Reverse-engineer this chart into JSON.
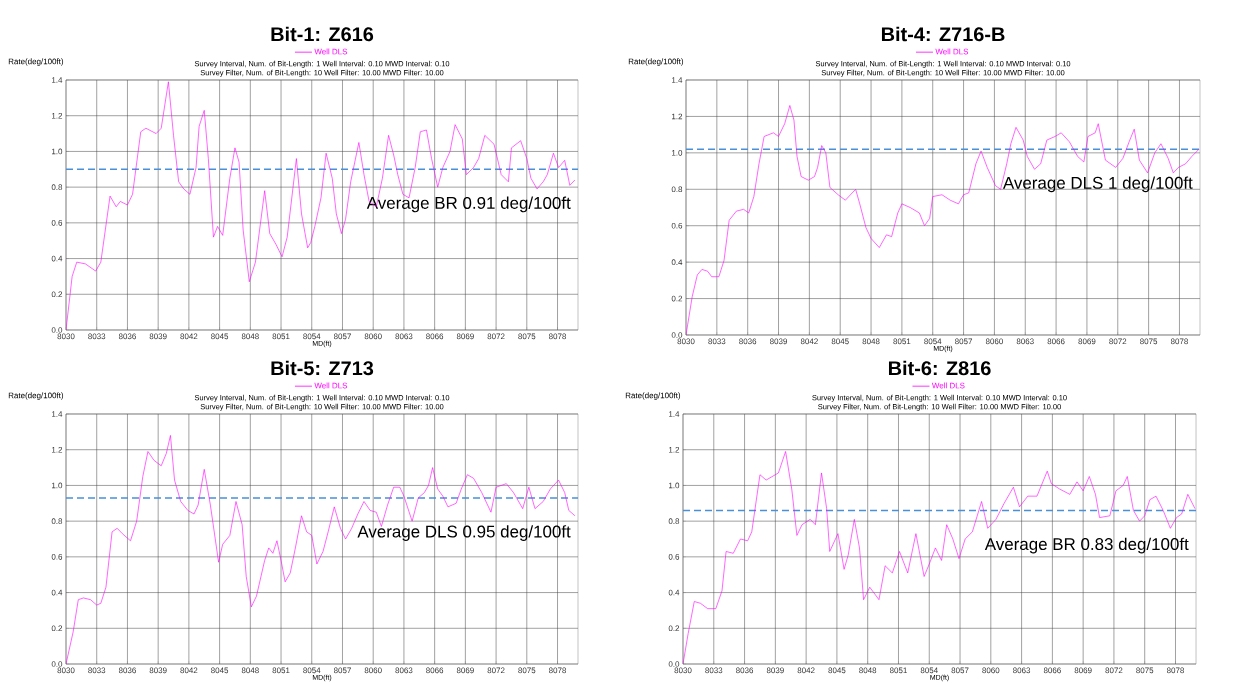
{
  "chart_data": [
    {
      "type": "line",
      "title": "Bit-1: Z616",
      "annotations": [
        "Survey Interval, Num. of Bit-Length: 1 Well Interval: 0.10 MWD Interval: 0.10",
        "Survey Filter, Num. of Bit-Length: 10 Well Filter: 10.00 MWD Filter: 10.00"
      ],
      "xlabel": "MD(ft)",
      "ylabel": "Rate(deg/100ft)",
      "xlim": [
        8030,
        8080
      ],
      "ylim": [
        0,
        1.4
      ],
      "xticks": [
        8030,
        8033,
        8036,
        8039,
        8042,
        8045,
        8048,
        8051,
        8054,
        8057,
        8060,
        8063,
        8066,
        8069,
        8072,
        8075,
        8078
      ],
      "yticks": [
        {
          "value": 0,
          "label": "0.0"
        },
        {
          "value": 0.2,
          "label": "0.2"
        },
        {
          "value": 0.4,
          "label": "0.4"
        },
        {
          "value": 0.6,
          "label": "0.6"
        },
        {
          "value": 0.8,
          "label": "0.8"
        },
        {
          "value": 1.0,
          "label": "1.0"
        },
        {
          "value": 1.2,
          "label": "1.2"
        },
        {
          "value": 1.4,
          "label": "1.4"
        }
      ],
      "grid": true,
      "legend": "top",
      "line_style": "solid",
      "x": [
        8030,
        8030.6,
        8031.05,
        8031.9,
        8032.9,
        8033.4,
        8034.3,
        8034.9,
        8035.3,
        8036.0,
        8036.5,
        8037.3,
        8037.8,
        8038.8,
        8039.3,
        8040.0,
        8040.5,
        8041.0,
        8041.5,
        8042.1,
        8042.7,
        8043.0,
        8043.5,
        8043.9,
        8044.4,
        8044.8,
        8045.3,
        8046.0,
        8046.5,
        8046.9,
        8047.3,
        8047.9,
        8048.5,
        8049.4,
        8049.9,
        8050.5,
        8051.1,
        8051.6,
        8052.5,
        8053.0,
        8053.6,
        8053.9,
        8054.3,
        8054.9,
        8055.4,
        8056.0,
        8056.4,
        8056.9,
        8057.3,
        8057.8,
        8058.6,
        8059.1,
        8059.6,
        8060.3,
        8060.9,
        8061.5,
        8062.0,
        8062.4,
        8062.9,
        8063.5,
        8064.1,
        8064.6,
        8065.2,
        8065.7,
        8066.3,
        8066.8,
        8067.5,
        8068.0,
        8068.7,
        8069.1,
        8069.8,
        8070.3,
        8070.9,
        8071.8,
        8072.5,
        8073.2,
        8073.5,
        8074.4,
        8075.0,
        8075.4,
        8076.0,
        8076.6,
        8077.0,
        8077.6,
        8078.1,
        8078.7,
        8079.2,
        8079.7
      ],
      "series": [
        {
          "name": "Well DLS",
          "color": "#ff00ff",
          "values": [
            0,
            0.3,
            0.38,
            0.37,
            0.33,
            0.38,
            0.75,
            0.69,
            0.72,
            0.7,
            0.76,
            1.11,
            1.13,
            1.1,
            1.13,
            1.39,
            1.09,
            0.83,
            0.79,
            0.76,
            0.91,
            1.14,
            1.23,
            0.96,
            0.52,
            0.58,
            0.53,
            0.85,
            1.02,
            0.94,
            0.56,
            0.27,
            0.38,
            0.78,
            0.54,
            0.48,
            0.41,
            0.52,
            0.96,
            0.65,
            0.46,
            0.49,
            0.58,
            0.74,
            0.99,
            0.85,
            0.65,
            0.54,
            0.62,
            0.83,
            1.05,
            0.87,
            0.72,
            0.69,
            0.85,
            1.09,
            0.98,
            0.87,
            0.76,
            0.74,
            0.91,
            1.11,
            1.12,
            0.96,
            0.8,
            0.91,
            1.0,
            1.15,
            1.07,
            0.87,
            0.91,
            0.96,
            1.09,
            1.04,
            0.87,
            0.83,
            1.02,
            1.06,
            0.96,
            0.85,
            0.79,
            0.83,
            0.87,
            0.99,
            0.91,
            0.95,
            0.81,
            0.84
          ]
        }
      ],
      "ref_lines": [
        {
          "axis": "y",
          "value": 0.9,
          "label": "Average BR 0.91 deg/100ft",
          "color": "#4a90d9",
          "line_style": "dashed"
        }
      ]
    },
    {
      "type": "line",
      "title": "Bit-4: Z716-B",
      "annotations": [
        "Survey Interval, Num. of Bit-Length: 1 Well Interval: 0.10 MWD Interval: 0.10",
        "Survey Filter, Num. of Bit-Length: 10 Well Filter: 10.00 MWD Filter: 10.00"
      ],
      "xlabel": "MD(ft)",
      "ylabel": "Rate(deg/100ft)",
      "xlim": [
        8030,
        8080
      ],
      "ylim": [
        0,
        1.4
      ],
      "xticks": [
        8030,
        8033,
        8036,
        8039,
        8042,
        8045,
        8048,
        8051,
        8054,
        8057,
        8060,
        8063,
        8066,
        8069,
        8072,
        8075,
        8078
      ],
      "yticks": [
        {
          "value": 0,
          "label": "0.0"
        },
        {
          "value": 0.2,
          "label": "0.2"
        },
        {
          "value": 0.4,
          "label": "0.4"
        },
        {
          "value": 0.6,
          "label": "0.6"
        },
        {
          "value": 0.8,
          "label": "0.8"
        },
        {
          "value": 1.0,
          "label": "1.0"
        },
        {
          "value": 1.2,
          "label": "1.2"
        },
        {
          "value": 1.4,
          "label": "1.4"
        }
      ],
      "grid": true,
      "legend": "top",
      "line_style": "solid",
      "x": [
        8030,
        8030.6,
        8031.1,
        8031.55,
        8032.1,
        8032.5,
        8033.2,
        8033.7,
        8034.2,
        8034.9,
        8035.6,
        8036.1,
        8036.6,
        8037.1,
        8037.6,
        8038.5,
        8039.0,
        8039.6,
        8040.1,
        8040.5,
        8040.8,
        8041.2,
        8041.9,
        8042.5,
        8042.8,
        8043.2,
        8043.6,
        8044.0,
        8044.8,
        8045.5,
        8046.5,
        8046.9,
        8047.5,
        8048.0,
        8048.8,
        8049.5,
        8050.0,
        8050.6,
        8051.0,
        8051.8,
        8052.7,
        8053.2,
        8053.7,
        8054.0,
        8054.9,
        8055.7,
        8056.5,
        8057.0,
        8057.5,
        8058.2,
        8058.7,
        8059.3,
        8060.1,
        8060.6,
        8061.2,
        8061.6,
        8062.1,
        8062.8,
        8063.2,
        8063.9,
        8064.5,
        8065.1,
        8065.9,
        8066.5,
        8067.3,
        8068.1,
        8068.7,
        8069.1,
        8069.8,
        8070.1,
        8070.8,
        8071.8,
        8072.5,
        8073.1,
        8073.6,
        8074.1,
        8074.9,
        8075.6,
        8076.2,
        8076.9,
        8077.4,
        8077.9,
        8078.6,
        8079.2,
        8079.9
      ],
      "series": [
        {
          "name": "Well DLS",
          "color": "#ff00ff",
          "values": [
            0,
            0.21,
            0.33,
            0.36,
            0.35,
            0.32,
            0.32,
            0.41,
            0.63,
            0.68,
            0.69,
            0.67,
            0.76,
            0.94,
            1.09,
            1.11,
            1.09,
            1.16,
            1.26,
            1.18,
            0.98,
            0.87,
            0.85,
            0.87,
            0.92,
            1.04,
            1.0,
            0.81,
            0.77,
            0.74,
            0.8,
            0.72,
            0.59,
            0.53,
            0.48,
            0.55,
            0.54,
            0.67,
            0.72,
            0.7,
            0.67,
            0.6,
            0.64,
            0.76,
            0.77,
            0.74,
            0.72,
            0.77,
            0.78,
            0.94,
            1.01,
            0.92,
            0.82,
            0.8,
            0.94,
            1.05,
            1.14,
            1.07,
            0.98,
            0.91,
            0.94,
            1.07,
            1.09,
            1.11,
            1.06,
            0.98,
            0.95,
            1.09,
            1.11,
            1.16,
            0.96,
            0.92,
            0.97,
            1.06,
            1.13,
            0.96,
            0.89,
            1.0,
            1.05,
            0.97,
            0.89,
            0.92,
            0.94,
            0.98,
            1.02
          ]
        }
      ],
      "ref_lines": [
        {
          "axis": "y",
          "value": 1.02,
          "label": "Average DLS 1 deg/100ft",
          "color": "#4a90d9",
          "line_style": "dashed"
        }
      ]
    },
    {
      "type": "line",
      "title": "Bit-5: Z713",
      "annotations": [
        "Survey Interval, Num. of Bit-Length: 1 Well Interval: 0.10 MWD Interval: 0.10",
        "Survey Filter, Num. of Bit-Length: 10 Well Filter: 10.00 MWD Filter: 10.00"
      ],
      "xlabel": "MD(ft)",
      "ylabel": "Rate(deg/100ft)",
      "xlim": [
        8030,
        8080
      ],
      "ylim": [
        0,
        1.4
      ],
      "xticks": [
        8030,
        8033,
        8036,
        8039,
        8042,
        8045,
        8048,
        8051,
        8054,
        8057,
        8060,
        8063,
        8066,
        8069,
        8072,
        8075,
        8078
      ],
      "yticks": [
        {
          "value": 0,
          "label": "0.0"
        },
        {
          "value": 0.2,
          "label": "0.2"
        },
        {
          "value": 0.4,
          "label": "0.4"
        },
        {
          "value": 0.6,
          "label": "0.6"
        },
        {
          "value": 0.8,
          "label": "0.8"
        },
        {
          "value": 1.0,
          "label": "1.0"
        },
        {
          "value": 1.2,
          "label": "1.2"
        },
        {
          "value": 1.4,
          "label": "1.4"
        }
      ],
      "grid": true,
      "legend": "top",
      "line_style": "solid",
      "x": [
        8030,
        8030.7,
        8031.2,
        8031.7,
        8032.4,
        8033.0,
        8033.4,
        8033.9,
        8034.5,
        8035.0,
        8035.5,
        8036.3,
        8036.9,
        8037.5,
        8038.0,
        8038.6,
        8039.3,
        8039.8,
        8040.2,
        8040.6,
        8041.2,
        8041.9,
        8042.5,
        8042.9,
        8043.5,
        8044.1,
        8044.9,
        8045.3,
        8046.0,
        8046.6,
        8047.2,
        8047.6,
        8048.1,
        8048.6,
        8049.4,
        8049.8,
        8050.2,
        8050.6,
        8051.0,
        8051.4,
        8051.9,
        8052.4,
        8053.0,
        8053.5,
        8054.0,
        8054.5,
        8055.1,
        8055.6,
        8056.2,
        8056.8,
        8057.3,
        8057.9,
        8058.5,
        8059.1,
        8059.7,
        8060.3,
        8060.8,
        8061.4,
        8062.0,
        8062.6,
        8063.0,
        8063.8,
        8064.4,
        8065.0,
        8065.4,
        8065.8,
        8066.3,
        8066.8,
        8067.3,
        8068.1,
        8068.6,
        8069.2,
        8069.8,
        8070.6,
        8071.5,
        8072.0,
        8073.0,
        8073.7,
        8074.6,
        8075.2,
        8075.8,
        8076.6,
        8077.3,
        8078.1,
        8078.7,
        8079.1,
        8079.7
      ],
      "series": [
        {
          "name": "Well DLS",
          "color": "#ff00ff",
          "values": [
            0,
            0.18,
            0.36,
            0.37,
            0.36,
            0.33,
            0.34,
            0.43,
            0.74,
            0.76,
            0.73,
            0.69,
            0.8,
            1.05,
            1.19,
            1.14,
            1.11,
            1.18,
            1.28,
            1.03,
            0.91,
            0.86,
            0.84,
            0.89,
            1.09,
            0.89,
            0.57,
            0.67,
            0.72,
            0.91,
            0.78,
            0.49,
            0.32,
            0.38,
            0.58,
            0.65,
            0.62,
            0.69,
            0.58,
            0.46,
            0.51,
            0.65,
            0.83,
            0.74,
            0.72,
            0.56,
            0.63,
            0.74,
            0.88,
            0.76,
            0.7,
            0.76,
            0.84,
            0.91,
            0.86,
            0.85,
            0.77,
            0.89,
            0.99,
            0.99,
            0.94,
            0.8,
            0.93,
            0.96,
            1.0,
            1.1,
            0.98,
            0.94,
            0.88,
            0.9,
            0.98,
            1.06,
            1.04,
            0.96,
            0.85,
            0.99,
            1.01,
            0.96,
            0.87,
            0.99,
            0.87,
            0.91,
            0.98,
            1.03,
            0.96,
            0.86,
            0.83
          ]
        }
      ],
      "ref_lines": [
        {
          "axis": "y",
          "value": 0.93,
          "label": "Average DLS 0.95 deg/100ft",
          "color": "#4a90d9",
          "line_style": "dashed"
        }
      ]
    },
    {
      "type": "line",
      "title": "Bit-6: Z816",
      "annotations": [
        "Survey Interval, Num. of Bit-Length: 1 Well Interval: 0.10 MWD Interval: 0.10",
        "Survey Filter, Num. of Bit-Length: 10 Well Filter: 10.00 MWD Filter: 10.00"
      ],
      "xlabel": "MD(ft)",
      "ylabel": "Rate(deg/100ft)",
      "xlim": [
        8030,
        8080
      ],
      "ylim": [
        0,
        1.4
      ],
      "xticks": [
        8030,
        8033,
        8036,
        8039,
        8042,
        8045,
        8048,
        8051,
        8054,
        8057,
        8060,
        8063,
        8066,
        8069,
        8072,
        8075,
        8078
      ],
      "yticks": [
        {
          "value": 0,
          "label": "0.0"
        },
        {
          "value": 0.2,
          "label": "0.2"
        },
        {
          "value": 0.4,
          "label": "0.4"
        },
        {
          "value": 0.6,
          "label": "0.6"
        },
        {
          "value": 0.8,
          "label": "0.8"
        },
        {
          "value": 1.0,
          "label": "1.0"
        },
        {
          "value": 1.2,
          "label": "1.2"
        },
        {
          "value": 1.4,
          "label": "1.4"
        }
      ],
      "grid": true,
      "legend": "top",
      "line_style": "solid",
      "x": [
        8030,
        8030.5,
        8031.1,
        8031.7,
        8032.4,
        8033.2,
        8033.8,
        8034.2,
        8034.9,
        8035.6,
        8036.3,
        8036.7,
        8037.5,
        8038.1,
        8039.3,
        8040.0,
        8040.6,
        8041.1,
        8041.6,
        8042.4,
        8042.9,
        8043.5,
        8044.0,
        8044.3,
        8045.1,
        8045.7,
        8046.1,
        8046.7,
        8047.2,
        8047.6,
        8048.2,
        8049.1,
        8049.7,
        8050.4,
        8051.1,
        8051.9,
        8052.7,
        8053.5,
        8054.0,
        8054.6,
        8055.2,
        8055.7,
        8056.3,
        8056.9,
        8057.5,
        8058.2,
        8059.1,
        8059.7,
        8060.5,
        8061.3,
        8062.2,
        8062.8,
        8063.6,
        8064.5,
        8065.5,
        8065.9,
        8066.7,
        8067.7,
        8068.4,
        8069.0,
        8069.6,
        8070.2,
        8070.6,
        8071.6,
        8072.2,
        8072.9,
        8073.3,
        8073.9,
        8074.5,
        8075.0,
        8075.5,
        8076.1,
        8076.8,
        8077.5,
        8078.1,
        8078.6,
        8079.2,
        8079.9
      ],
      "series": [
        {
          "name": "Well DLS",
          "color": "#ff00ff",
          "values": [
            0,
            0.17,
            0.35,
            0.34,
            0.31,
            0.31,
            0.41,
            0.63,
            0.62,
            0.7,
            0.69,
            0.74,
            1.06,
            1.03,
            1.07,
            1.19,
            0.98,
            0.72,
            0.78,
            0.81,
            0.78,
            1.07,
            0.87,
            0.63,
            0.73,
            0.53,
            0.61,
            0.81,
            0.65,
            0.36,
            0.43,
            0.36,
            0.55,
            0.51,
            0.63,
            0.51,
            0.73,
            0.49,
            0.56,
            0.65,
            0.58,
            0.78,
            0.7,
            0.59,
            0.7,
            0.74,
            0.91,
            0.76,
            0.81,
            0.9,
            0.99,
            0.88,
            0.94,
            0.94,
            1.08,
            1.01,
            0.98,
            0.95,
            1.02,
            0.97,
            1.05,
            0.95,
            0.82,
            0.83,
            0.97,
            1.0,
            1.05,
            0.86,
            0.8,
            0.83,
            0.92,
            0.94,
            0.86,
            0.76,
            0.82,
            0.84,
            0.95,
            0.87
          ]
        }
      ],
      "ref_lines": [
        {
          "axis": "y",
          "value": 0.86,
          "label": "Average BR 0.83 deg/100ft",
          "color": "#4a90d9",
          "line_style": "dashed"
        }
      ]
    }
  ]
}
